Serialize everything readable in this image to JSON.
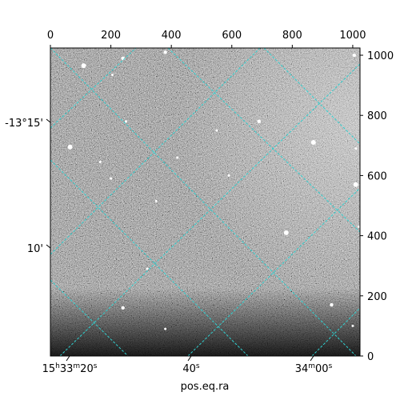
{
  "chart_data": {
    "type": "image",
    "xlabel": "pos.eq.ra",
    "ylabel": "",
    "pixel_axes": {
      "top_ticks": [
        0,
        200,
        400,
        600,
        800,
        1000
      ],
      "right_ticks": [
        0,
        200,
        400,
        600,
        800,
        1000
      ],
      "xlim": [
        0,
        1024
      ],
      "ylim": [
        0,
        1024
      ]
    },
    "ra_ticks": [
      {
        "label": "15h33m20s",
        "h": "15",
        "m": "33",
        "s": "20"
      },
      {
        "label": "40s",
        "s": "40"
      },
      {
        "label": "34m00s",
        "m": "34",
        "s": "00"
      }
    ],
    "dec_ticks": [
      "-13°15'",
      "10'"
    ],
    "grid": {
      "on": true,
      "color": "#2fd0d0",
      "style": "dashed"
    },
    "image_colormap": "gray",
    "sources_approx": [
      [
        110,
        965
      ],
      [
        205,
        935
      ],
      [
        320,
        290
      ],
      [
        240,
        160
      ],
      [
        1000,
        100
      ],
      [
        65,
        695
      ],
      [
        930,
        170
      ],
      [
        250,
        780
      ],
      [
        550,
        750
      ],
      [
        690,
        780
      ],
      [
        870,
        710
      ],
      [
        350,
        515
      ],
      [
        380,
        1010
      ],
      [
        420,
        660
      ],
      [
        590,
        600
      ],
      [
        780,
        410
      ],
      [
        1020,
        430
      ],
      [
        380,
        90
      ],
      [
        1005,
        1000
      ],
      [
        1010,
        690
      ],
      [
        1010,
        570
      ],
      [
        240,
        990
      ],
      [
        165,
        645
      ],
      [
        200,
        590
      ]
    ]
  }
}
